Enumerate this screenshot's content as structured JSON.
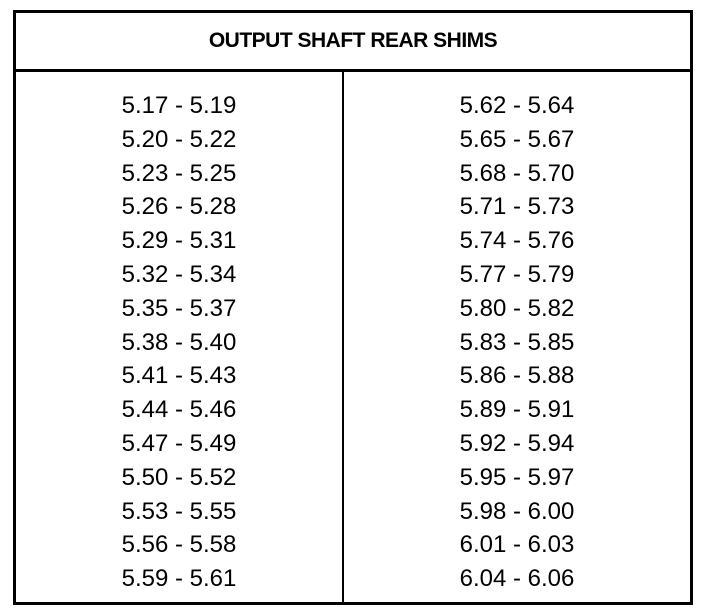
{
  "title": "OUTPUT SHAFT REAR SHIMS",
  "left_column": [
    "5.17 - 5.19",
    "5.20 - 5.22",
    "5.23 - 5.25",
    "5.26 - 5.28",
    "5.29 - 5.31",
    "5.32 - 5.34",
    "5.35 - 5.37",
    "5.38 - 5.40",
    "5.41 - 5.43",
    "5.44 - 5.46",
    "5.47 - 5.49",
    "5.50 - 5.52",
    "5.53 - 5.55",
    "5.56 - 5.58",
    "5.59 - 5.61"
  ],
  "right_column": [
    "5.62 - 5.64",
    "5.65 - 5.67",
    "5.68 - 5.70",
    "5.71 - 5.73",
    "5.74 - 5.76",
    "5.77 - 5.79",
    "5.80 - 5.82",
    "5.83 - 5.85",
    "5.86 - 5.88",
    "5.89 - 5.91",
    "5.92 - 5.94",
    "5.95 - 5.97",
    "5.98 - 6.00",
    "6.01 - 6.03",
    "6.04 - 6.06"
  ]
}
